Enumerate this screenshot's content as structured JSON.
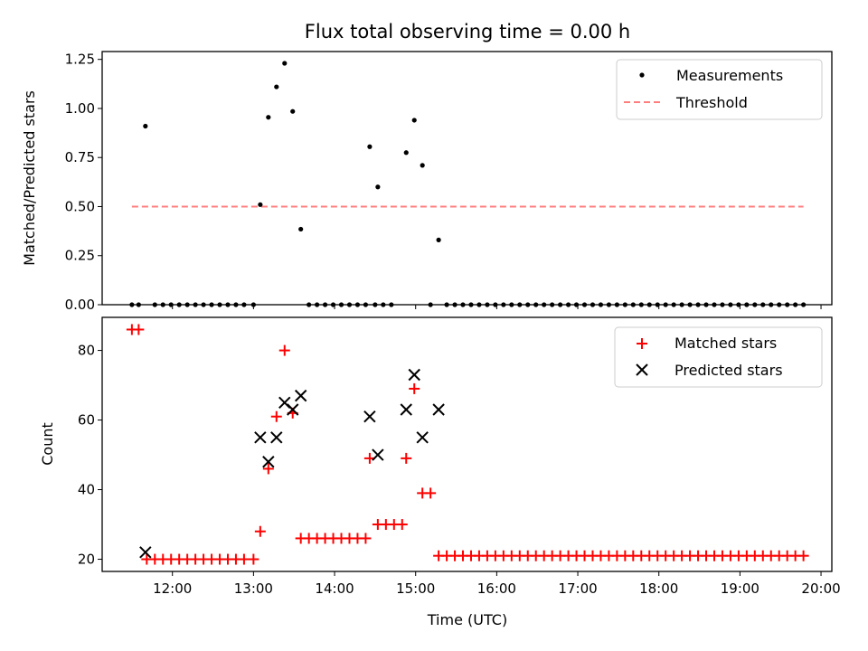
{
  "title": "Flux total observing time = 0.00 h",
  "colors": {
    "measurement": "#000000",
    "threshold": "#ff7f7f",
    "matched": "#ff0000",
    "predicted": "#000000"
  },
  "chart_data": [
    {
      "type": "scatter",
      "title": "Flux total observing time = 0.00 h",
      "xlabel": "",
      "ylabel": "Matched/Predicted stars",
      "xlim": [
        "11:08",
        "20:08"
      ],
      "ylim": [
        0,
        1.29
      ],
      "y_ticks": [
        "0.00",
        "0.25",
        "0.50",
        "0.75",
        "1.00",
        "1.25"
      ],
      "legend_position": "top-right",
      "legend": [
        "Measurements",
        "Threshold"
      ],
      "series": [
        {
          "name": "Measurements",
          "marker": "dot",
          "points": [
            [
              "11:30",
              0.0
            ],
            [
              "11:35",
              0.0
            ],
            [
              "11:40",
              0.91
            ],
            [
              "11:47",
              0.0
            ],
            [
              "11:53",
              0.0
            ],
            [
              "11:59",
              0.0
            ],
            [
              "12:05",
              0.0
            ],
            [
              "12:11",
              0.0
            ],
            [
              "12:17",
              0.0
            ],
            [
              "12:23",
              0.0
            ],
            [
              "12:29",
              0.0
            ],
            [
              "12:35",
              0.0
            ],
            [
              "12:41",
              0.0
            ],
            [
              "12:47",
              0.0
            ],
            [
              "12:53",
              0.0
            ],
            [
              "13:00",
              0.0
            ],
            [
              "13:05",
              0.51
            ],
            [
              "13:11",
              0.955
            ],
            [
              "13:17",
              1.11
            ],
            [
              "13:23",
              1.23
            ],
            [
              "13:29",
              0.985
            ],
            [
              "13:35",
              0.385
            ],
            [
              "13:41",
              0.0
            ],
            [
              "13:47",
              0.0
            ],
            [
              "13:53",
              0.0
            ],
            [
              "13:59",
              0.0
            ],
            [
              "14:05",
              0.0
            ],
            [
              "14:11",
              0.0
            ],
            [
              "14:17",
              0.0
            ],
            [
              "14:23",
              0.0
            ],
            [
              "14:30",
              0.0
            ],
            [
              "14:36",
              0.0
            ],
            [
              "14:42",
              0.0
            ],
            [
              "14:26",
              0.805
            ],
            [
              "14:32",
              0.6
            ],
            [
              "14:53",
              0.775
            ],
            [
              "14:59",
              0.94
            ],
            [
              "15:05",
              0.71
            ],
            [
              "15:11",
              0.0
            ],
            [
              "15:17",
              0.33
            ],
            [
              "15:23",
              0.0
            ],
            [
              "15:29",
              0.0
            ],
            [
              "15:35",
              0.0
            ],
            [
              "15:41",
              0.0
            ],
            [
              "15:47",
              0.0
            ],
            [
              "15:53",
              0.0
            ],
            [
              "15:59",
              0.0
            ],
            [
              "16:05",
              0.0
            ],
            [
              "16:11",
              0.0
            ],
            [
              "16:17",
              0.0
            ],
            [
              "16:23",
              0.0
            ],
            [
              "16:29",
              0.0
            ],
            [
              "16:35",
              0.0
            ],
            [
              "16:41",
              0.0
            ],
            [
              "16:47",
              0.0
            ],
            [
              "16:53",
              0.0
            ],
            [
              "16:59",
              0.0
            ],
            [
              "17:05",
              0.0
            ],
            [
              "17:11",
              0.0
            ],
            [
              "17:17",
              0.0
            ],
            [
              "17:23",
              0.0
            ],
            [
              "17:29",
              0.0
            ],
            [
              "17:35",
              0.0
            ],
            [
              "17:41",
              0.0
            ],
            [
              "17:47",
              0.0
            ],
            [
              "17:53",
              0.0
            ],
            [
              "17:59",
              0.0
            ],
            [
              "18:05",
              0.0
            ],
            [
              "18:11",
              0.0
            ],
            [
              "18:17",
              0.0
            ],
            [
              "18:23",
              0.0
            ],
            [
              "18:29",
              0.0
            ],
            [
              "18:35",
              0.0
            ],
            [
              "18:41",
              0.0
            ],
            [
              "18:47",
              0.0
            ],
            [
              "18:53",
              0.0
            ],
            [
              "18:59",
              0.0
            ],
            [
              "19:05",
              0.0
            ],
            [
              "19:11",
              0.0
            ],
            [
              "19:17",
              0.0
            ],
            [
              "19:23",
              0.0
            ],
            [
              "19:29",
              0.0
            ],
            [
              "19:35",
              0.0
            ],
            [
              "19:41",
              0.0
            ],
            [
              "19:47",
              0.0
            ]
          ]
        },
        {
          "name": "Threshold",
          "marker": "dashed-line",
          "points": [
            [
              "11:30",
              0.5
            ],
            [
              "19:47",
              0.5
            ]
          ]
        }
      ]
    },
    {
      "type": "scatter",
      "xlabel": "Time (UTC)",
      "ylabel": "Count",
      "xlim": [
        "11:08",
        "20:08"
      ],
      "ylim": [
        16.5,
        89.5
      ],
      "x_ticks": [
        "12:00",
        "13:00",
        "14:00",
        "15:00",
        "16:00",
        "17:00",
        "18:00",
        "19:00",
        "20:00"
      ],
      "y_ticks": [
        "20",
        "40",
        "60",
        "80"
      ],
      "legend_position": "top-right",
      "legend": [
        "Matched stars",
        "Predicted stars"
      ],
      "series": [
        {
          "name": "Matched stars",
          "marker": "plus",
          "points": [
            [
              "11:30",
              86
            ],
            [
              "11:35",
              86
            ],
            [
              "11:41",
              20
            ],
            [
              "11:47",
              20
            ],
            [
              "11:53",
              20
            ],
            [
              "11:59",
              20
            ],
            [
              "12:05",
              20
            ],
            [
              "12:11",
              20
            ],
            [
              "12:17",
              20
            ],
            [
              "12:23",
              20
            ],
            [
              "12:29",
              20
            ],
            [
              "12:35",
              20
            ],
            [
              "12:41",
              20
            ],
            [
              "12:47",
              20
            ],
            [
              "12:53",
              20
            ],
            [
              "13:00",
              20
            ],
            [
              "13:05",
              28
            ],
            [
              "13:11",
              46
            ],
            [
              "13:17",
              61
            ],
            [
              "13:23",
              80
            ],
            [
              "13:29",
              62
            ],
            [
              "13:35",
              26
            ],
            [
              "13:41",
              26
            ],
            [
              "13:47",
              26
            ],
            [
              "13:53",
              26
            ],
            [
              "13:59",
              26
            ],
            [
              "14:05",
              26
            ],
            [
              "14:11",
              26
            ],
            [
              "14:17",
              26
            ],
            [
              "14:23",
              26
            ],
            [
              "14:26",
              49
            ],
            [
              "14:32",
              30
            ],
            [
              "14:38",
              30
            ],
            [
              "14:44",
              30
            ],
            [
              "14:50",
              30
            ],
            [
              "14:53",
              49
            ],
            [
              "14:59",
              69
            ],
            [
              "15:05",
              39
            ],
            [
              "15:11",
              39
            ],
            [
              "15:17",
              21
            ],
            [
              "15:23",
              21
            ],
            [
              "15:29",
              21
            ],
            [
              "15:35",
              21
            ],
            [
              "15:41",
              21
            ],
            [
              "15:47",
              21
            ],
            [
              "15:53",
              21
            ],
            [
              "15:59",
              21
            ],
            [
              "16:05",
              21
            ],
            [
              "16:11",
              21
            ],
            [
              "16:17",
              21
            ],
            [
              "16:23",
              21
            ],
            [
              "16:29",
              21
            ],
            [
              "16:35",
              21
            ],
            [
              "16:41",
              21
            ],
            [
              "16:47",
              21
            ],
            [
              "16:53",
              21
            ],
            [
              "16:59",
              21
            ],
            [
              "17:05",
              21
            ],
            [
              "17:11",
              21
            ],
            [
              "17:17",
              21
            ],
            [
              "17:23",
              21
            ],
            [
              "17:29",
              21
            ],
            [
              "17:35",
              21
            ],
            [
              "17:41",
              21
            ],
            [
              "17:47",
              21
            ],
            [
              "17:53",
              21
            ],
            [
              "17:59",
              21
            ],
            [
              "18:05",
              21
            ],
            [
              "18:11",
              21
            ],
            [
              "18:17",
              21
            ],
            [
              "18:23",
              21
            ],
            [
              "18:29",
              21
            ],
            [
              "18:35",
              21
            ],
            [
              "18:41",
              21
            ],
            [
              "18:47",
              21
            ],
            [
              "18:53",
              21
            ],
            [
              "18:59",
              21
            ],
            [
              "19:05",
              21
            ],
            [
              "19:11",
              21
            ],
            [
              "19:17",
              21
            ],
            [
              "19:23",
              21
            ],
            [
              "19:29",
              21
            ],
            [
              "19:35",
              21
            ],
            [
              "19:41",
              21
            ],
            [
              "19:47",
              21
            ]
          ]
        },
        {
          "name": "Predicted stars",
          "marker": "x",
          "points": [
            [
              "11:40",
              22
            ],
            [
              "13:05",
              55
            ],
            [
              "13:11",
              48
            ],
            [
              "13:17",
              55
            ],
            [
              "13:23",
              65
            ],
            [
              "13:29",
              63
            ],
            [
              "13:35",
              67
            ],
            [
              "14:26",
              61
            ],
            [
              "14:32",
              50
            ],
            [
              "14:53",
              63
            ],
            [
              "14:59",
              73
            ],
            [
              "15:05",
              55
            ],
            [
              "15:17",
              63
            ]
          ]
        }
      ]
    }
  ]
}
